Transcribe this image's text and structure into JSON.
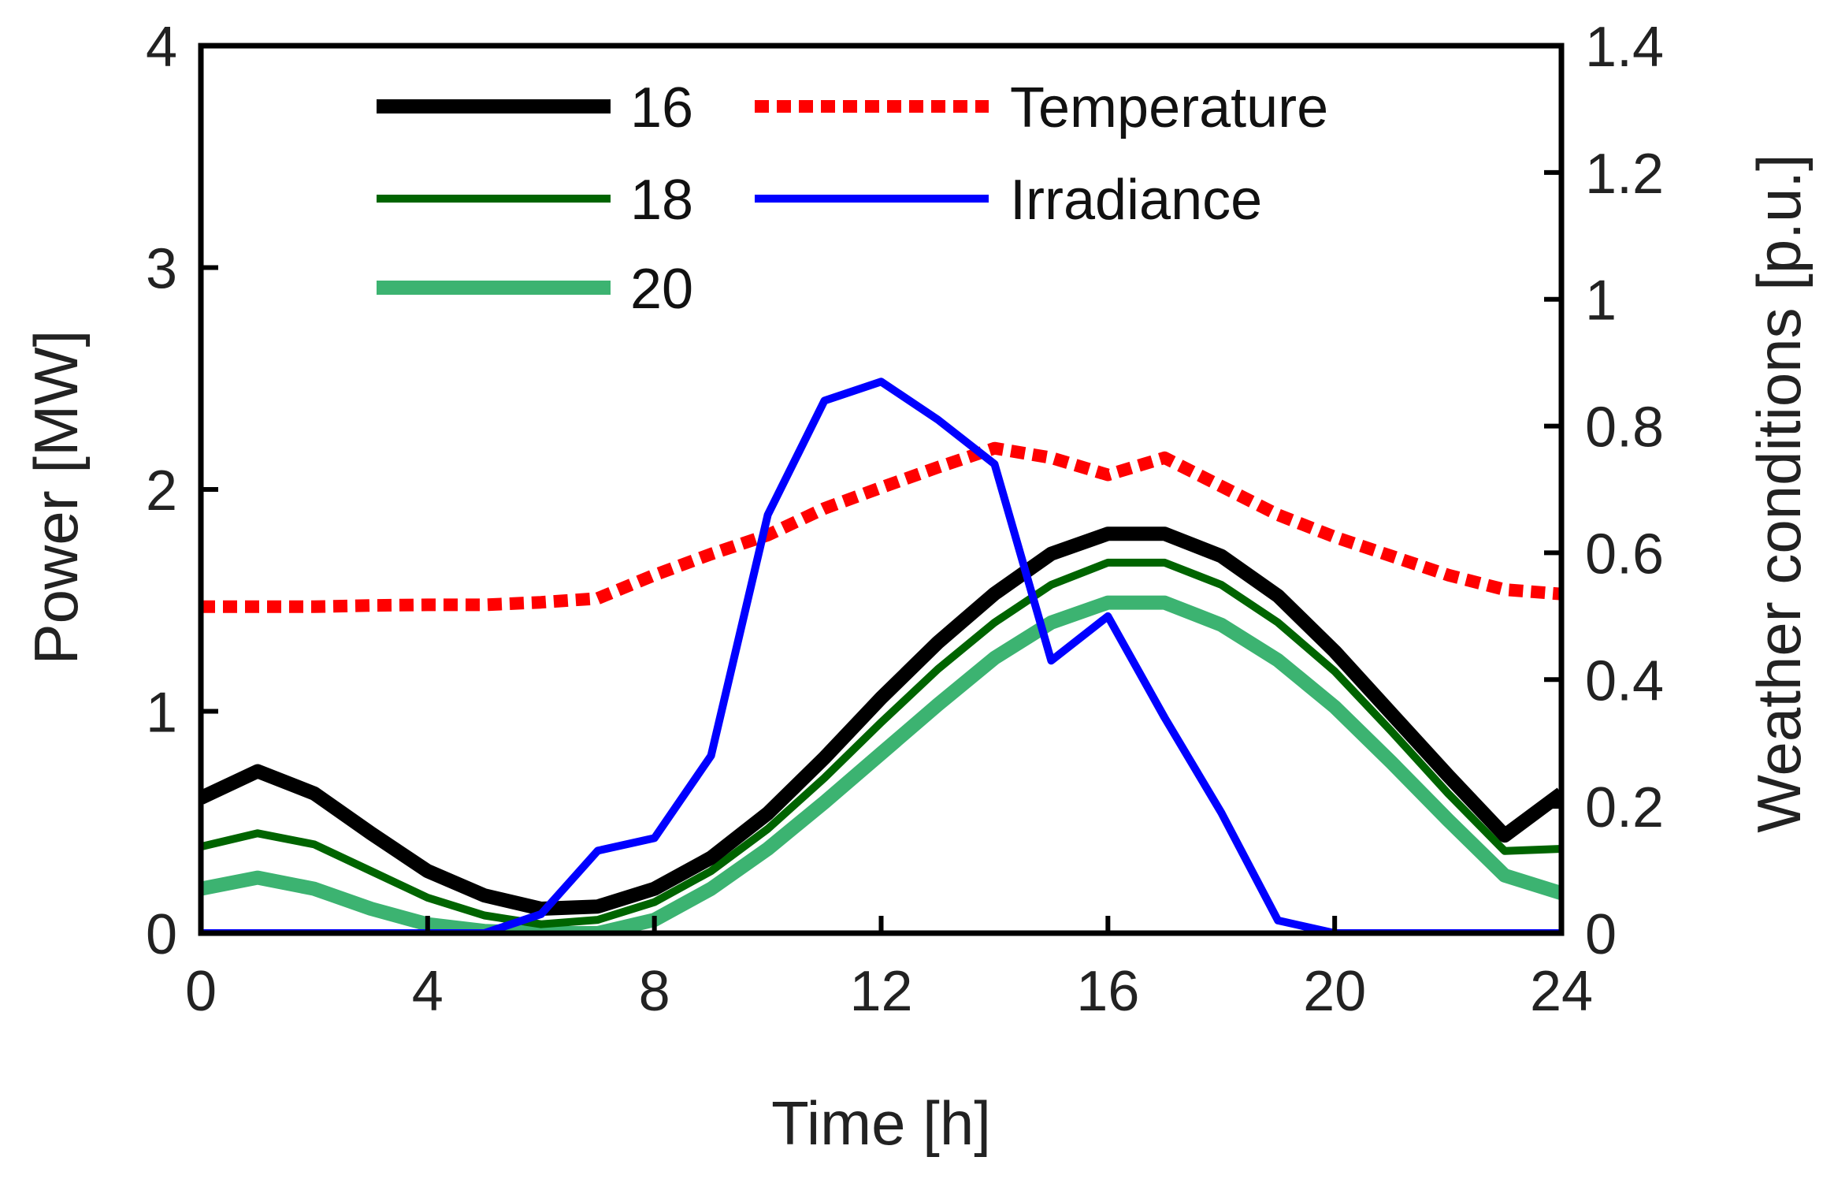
{
  "chart_data": {
    "type": "line",
    "xlabel": "Time [h]",
    "ylabel_left": "Power [MW]",
    "ylabel_right": "Weather conditions [p.u.]",
    "xlim": [
      0,
      24
    ],
    "ylim_left": [
      0,
      4
    ],
    "ylim_right": [
      0,
      1.4
    ],
    "x_ticks": [
      {
        "value": 0,
        "label": "0"
      },
      {
        "value": 4,
        "label": "4"
      },
      {
        "value": 8,
        "label": "8"
      },
      {
        "value": 12,
        "label": "12"
      },
      {
        "value": 16,
        "label": "16"
      },
      {
        "value": 20,
        "label": "20"
      },
      {
        "value": 24,
        "label": "24"
      }
    ],
    "y_left_ticks": [
      {
        "value": 0,
        "label": "0"
      },
      {
        "value": 1,
        "label": "1"
      },
      {
        "value": 2,
        "label": "2"
      },
      {
        "value": 3,
        "label": "3"
      },
      {
        "value": 4,
        "label": "4"
      }
    ],
    "y_right_ticks": [
      {
        "value": 0,
        "label": "0"
      },
      {
        "value": 0.2,
        "label": "0.2"
      },
      {
        "value": 0.4,
        "label": "0.4"
      },
      {
        "value": 0.6,
        "label": "0.6"
      },
      {
        "value": 0.8,
        "label": "0.8"
      },
      {
        "value": 1.0,
        "label": "1"
      },
      {
        "value": 1.2,
        "label": "1.2"
      },
      {
        "value": 1.4,
        "label": "1.4"
      }
    ],
    "x": [
      0,
      1,
      2,
      3,
      4,
      5,
      6,
      7,
      8,
      9,
      10,
      11,
      12,
      13,
      14,
      15,
      16,
      17,
      18,
      19,
      20,
      21,
      22,
      23,
      24
    ],
    "series": [
      {
        "name": "16",
        "axis": "left",
        "color": "#000000",
        "style": "solid-thick",
        "values": [
          0.61,
          0.73,
          0.63,
          0.45,
          0.28,
          0.17,
          0.11,
          0.12,
          0.2,
          0.34,
          0.54,
          0.79,
          1.06,
          1.31,
          1.53,
          1.71,
          1.8,
          1.8,
          1.7,
          1.52,
          1.27,
          0.99,
          0.71,
          0.44,
          0.63
        ]
      },
      {
        "name": "18",
        "axis": "left",
        "color": "#006400",
        "style": "solid",
        "values": [
          0.39,
          0.45,
          0.4,
          0.28,
          0.16,
          0.08,
          0.04,
          0.06,
          0.14,
          0.28,
          0.47,
          0.7,
          0.95,
          1.19,
          1.4,
          1.57,
          1.67,
          1.67,
          1.57,
          1.4,
          1.18,
          0.91,
          0.63,
          0.37,
          0.38
        ]
      },
      {
        "name": "20",
        "axis": "left",
        "color": "#3CB371",
        "style": "solid-thick",
        "values": [
          0.2,
          0.25,
          0.2,
          0.11,
          0.04,
          0.01,
          0.0,
          0.0,
          0.06,
          0.2,
          0.38,
          0.59,
          0.81,
          1.03,
          1.24,
          1.4,
          1.49,
          1.49,
          1.39,
          1.23,
          1.02,
          0.77,
          0.51,
          0.26,
          0.18
        ]
      },
      {
        "name": "Temperature",
        "axis": "right",
        "color": "#FF0000",
        "style": "dotted",
        "values": [
          0.515,
          0.515,
          0.515,
          0.517,
          0.518,
          0.518,
          0.522,
          0.528,
          0.565,
          0.598,
          0.628,
          0.67,
          0.703,
          0.735,
          0.765,
          0.75,
          0.723,
          0.75,
          0.705,
          0.66,
          0.625,
          0.595,
          0.565,
          0.542,
          0.535
        ]
      },
      {
        "name": "Irradiance",
        "axis": "right",
        "color": "#0000FF",
        "style": "solid",
        "values": [
          0.0,
          0.0,
          0.0,
          0.0,
          0.0,
          0.0,
          0.03,
          0.13,
          0.15,
          0.28,
          0.66,
          0.84,
          0.87,
          0.81,
          0.74,
          0.43,
          0.5,
          0.34,
          0.19,
          0.02,
          0.0,
          0.0,
          0.0,
          0.0,
          0.0
        ]
      }
    ],
    "legend": {
      "placement": "top-inside",
      "entries": [
        "16",
        "18",
        "20",
        "Temperature",
        "Irradiance"
      ]
    },
    "grid": false
  }
}
